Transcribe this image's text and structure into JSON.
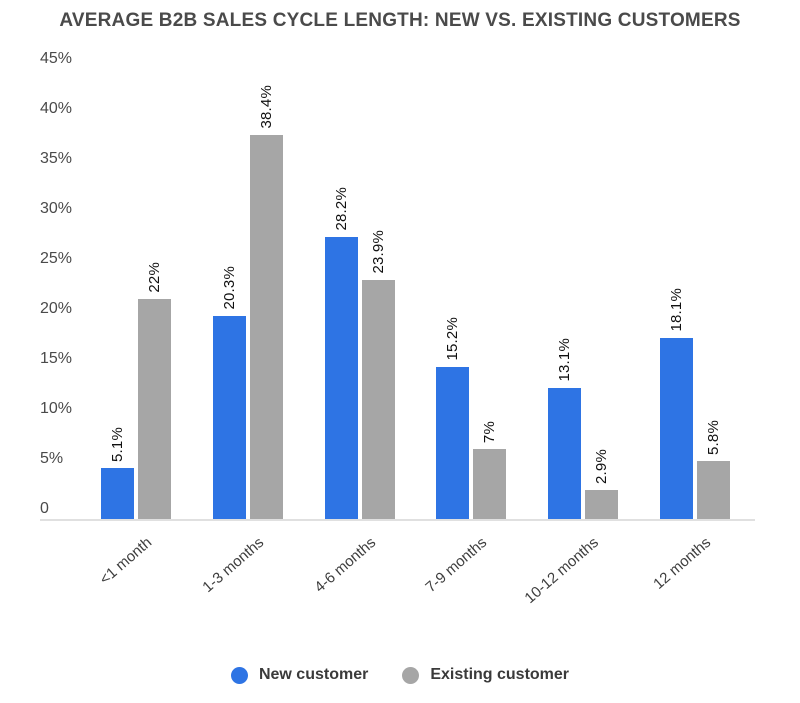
{
  "title": "AVERAGE B2B SALES CYCLE LENGTH: NEW VS. EXISTING CUSTOMERS",
  "colors": {
    "new_customer": "#2e74e4",
    "existing_customer": "#a6a6a6",
    "axis_line": "#e0e0e0"
  },
  "chart_data": {
    "type": "bar",
    "title": "AVERAGE B2B SALES CYCLE LENGTH: NEW VS. EXISTING CUSTOMERS",
    "categories": [
      "<1 month",
      "1-3 months",
      "4-6 months",
      "7-9 months",
      "10-12 months",
      "12 months"
    ],
    "series": [
      {
        "name": "New customer",
        "color": "#2e74e4",
        "values": [
          5.1,
          20.3,
          28.2,
          15.2,
          13.1,
          18.1
        ],
        "labels": [
          "5.1%",
          "20.3%",
          "28.2%",
          "15.2%",
          "13.1%",
          "18.1%"
        ]
      },
      {
        "name": "Existing customer",
        "color": "#a6a6a6",
        "values": [
          22,
          38.4,
          23.9,
          7,
          2.9,
          5.8
        ],
        "labels": [
          "22%",
          "38.4%",
          "23.9%",
          "7%",
          "2.9%",
          "5.8%"
        ]
      }
    ],
    "xlabel": "",
    "ylabel": "",
    "y_axis": {
      "tick_labels": [
        "45%",
        "40%",
        "35%",
        "30%",
        "25%",
        "20%",
        "15%",
        "10%",
        "5%",
        "0"
      ],
      "tick_values": [
        45,
        40,
        35,
        30,
        25,
        20,
        15,
        10,
        5,
        0
      ],
      "ylim": [
        0,
        45
      ]
    },
    "grid": false,
    "data_labels_rotation": "vertical",
    "category_labels_rotation": "diagonal",
    "legend_position": "bottom"
  }
}
